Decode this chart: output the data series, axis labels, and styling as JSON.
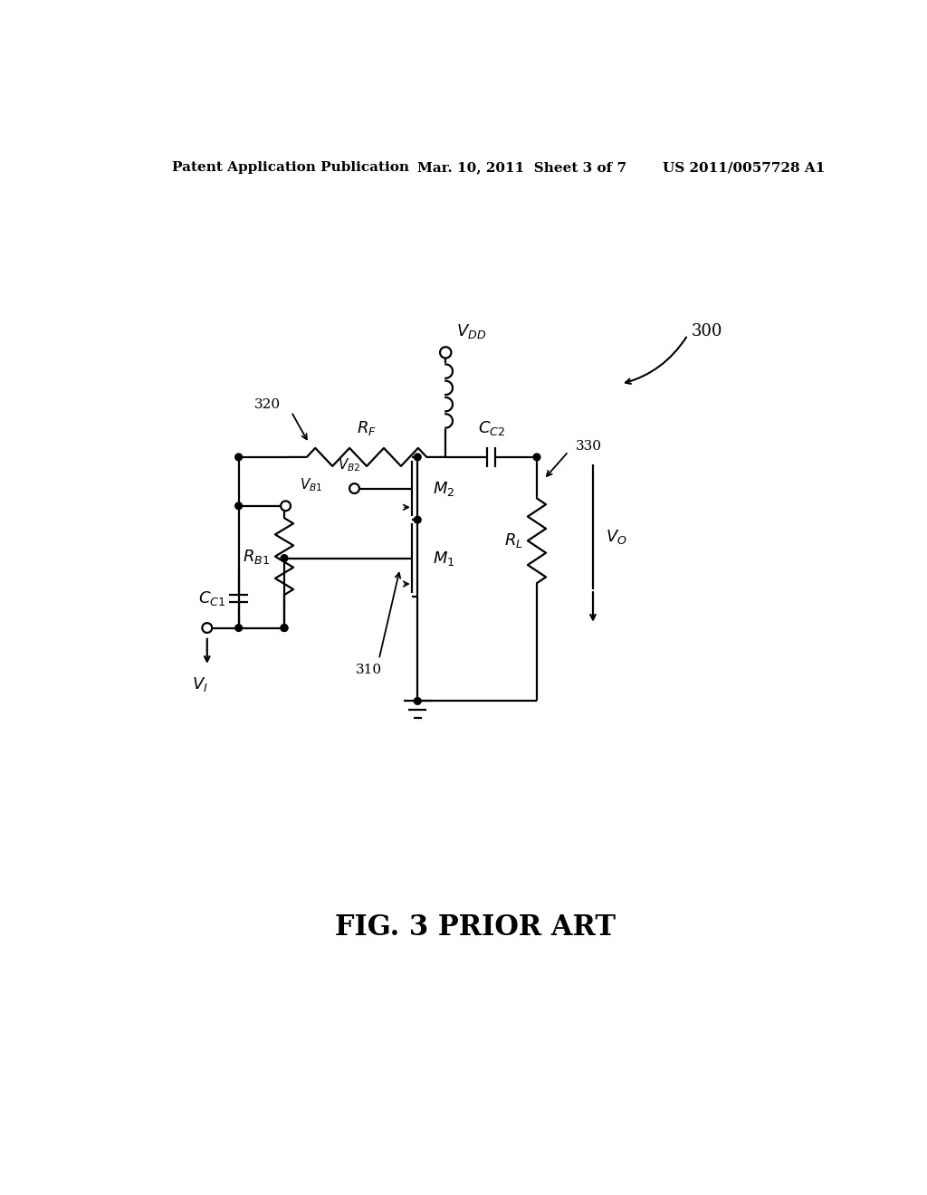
{
  "bg_color": "#ffffff",
  "line_color": "#000000",
  "lw": 1.6,
  "header_left": "Patent Application Publication",
  "header_center": "Mar. 10, 2011  Sheet 3 of 7",
  "header_right": "US 2011/0057728 A1",
  "caption": "FIG. 3 PRIOR ART",
  "label_300": "300",
  "label_310": "310",
  "label_320": "320",
  "label_330": "330"
}
